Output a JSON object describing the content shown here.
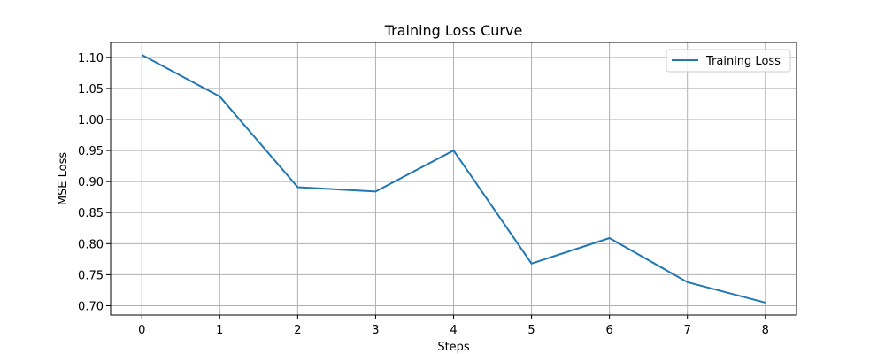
{
  "chart_data": {
    "type": "line",
    "title": "Training Loss Curve",
    "xlabel": "Steps",
    "ylabel": "MSE Loss",
    "x": [
      0,
      1,
      2,
      3,
      4,
      5,
      6,
      7,
      8
    ],
    "series": [
      {
        "name": "Training Loss",
        "color": "#1f77b4",
        "values": [
          1.104,
          1.037,
          0.891,
          0.884,
          0.95,
          0.768,
          0.809,
          0.738,
          0.705
        ]
      }
    ],
    "xlim": [
      -0.4,
      8.4
    ],
    "ylim": [
      0.685,
      1.124
    ],
    "xticks": [
      "0",
      "1",
      "2",
      "3",
      "4",
      "5",
      "6",
      "7",
      "8"
    ],
    "yticks": [
      "0.70",
      "0.75",
      "0.80",
      "0.85",
      "0.90",
      "0.95",
      "1.00",
      "1.05",
      "1.10"
    ],
    "grid": true,
    "legend_position": "top-right"
  }
}
